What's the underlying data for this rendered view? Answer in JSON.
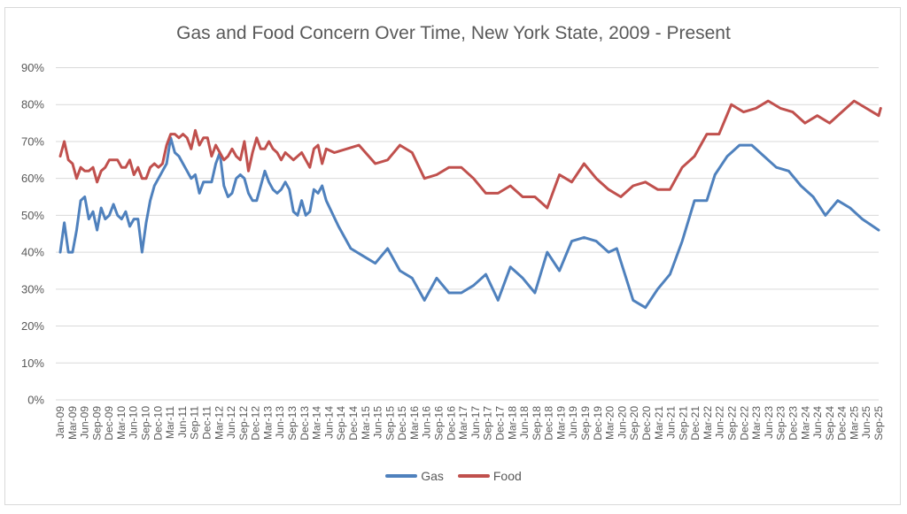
{
  "chart_data": {
    "type": "line",
    "title": "Gas and Food Concern Over Time, New York State, 2009 - Present",
    "xlabel": "",
    "ylabel": "",
    "ylim": [
      0,
      0.9
    ],
    "yticks": [
      "0%",
      "10%",
      "20%",
      "30%",
      "40%",
      "50%",
      "60%",
      "70%",
      "80%",
      "90%"
    ],
    "grid": true,
    "legend_position": "bottom",
    "x_tick_labels": [
      "Jan-09",
      "Mar-09",
      "Jun-09",
      "Sep-09",
      "Dec-09",
      "Mar-10",
      "Jun-10",
      "Sep-10",
      "Dec-10",
      "Mar-11",
      "Jun-11",
      "Sep-11",
      "Dec-11",
      "Mar-12",
      "Jun-12",
      "Sep-12",
      "Dec-12",
      "Mar-13",
      "Jun-13",
      "Sep-13",
      "Dec-13",
      "Mar-14",
      "Jun-14",
      "Sep-14",
      "Dec-14",
      "Mar-15",
      "Jun-15",
      "Sep-15",
      "Dec-15",
      "Mar-16",
      "Jun-16",
      "Sep-16",
      "Dec-16",
      "Mar-17",
      "Jun-17",
      "Sep-17",
      "Dec-17",
      "Mar-18",
      "Jun-18",
      "Sep-18",
      "Dec-18",
      "Mar-19",
      "Jun-19",
      "Sep-19",
      "Dec-19",
      "Mar-20",
      "Jun-20",
      "Sep-20",
      "Dec-20",
      "Mar-21",
      "Jun-21",
      "Sep-21",
      "Dec-21",
      "Mar-22",
      "Jun-22",
      "Sep-22",
      "Dec-22",
      "Mar-23",
      "Jun-23",
      "Sep-23",
      "Dec-23",
      "Mar-24",
      "Jun-24",
      "Sep-24",
      "Dec-24",
      "Mar-25",
      "Jun-25",
      "Sep-25"
    ],
    "x_range_months": [
      0,
      200
    ],
    "x_unit": "months since Jan-09",
    "series": [
      {
        "name": "Gas",
        "color": "#4f81bd",
        "points": [
          [
            0,
            0.4
          ],
          [
            1,
            0.48
          ],
          [
            2,
            0.4
          ],
          [
            3,
            0.4
          ],
          [
            4,
            0.46
          ],
          [
            5,
            0.54
          ],
          [
            6,
            0.55
          ],
          [
            7,
            0.49
          ],
          [
            8,
            0.51
          ],
          [
            9,
            0.46
          ],
          [
            10,
            0.52
          ],
          [
            11,
            0.49
          ],
          [
            12,
            0.5
          ],
          [
            13,
            0.53
          ],
          [
            14,
            0.5
          ],
          [
            15,
            0.49
          ],
          [
            16,
            0.51
          ],
          [
            17,
            0.47
          ],
          [
            18,
            0.49
          ],
          [
            19,
            0.49
          ],
          [
            20,
            0.4
          ],
          [
            21,
            0.48
          ],
          [
            22,
            0.54
          ],
          [
            23,
            0.58
          ],
          [
            24,
            0.6
          ],
          [
            25,
            0.62
          ],
          [
            26,
            0.64
          ],
          [
            27,
            0.71
          ],
          [
            28,
            0.67
          ],
          [
            29,
            0.66
          ],
          [
            30,
            0.64
          ],
          [
            31,
            0.62
          ],
          [
            32,
            0.6
          ],
          [
            33,
            0.61
          ],
          [
            34,
            0.56
          ],
          [
            35,
            0.59
          ],
          [
            36,
            0.59
          ],
          [
            37,
            0.59
          ],
          [
            38,
            0.64
          ],
          [
            39,
            0.67
          ],
          [
            40,
            0.58
          ],
          [
            41,
            0.55
          ],
          [
            42,
            0.56
          ],
          [
            43,
            0.6
          ],
          [
            44,
            0.61
          ],
          [
            45,
            0.6
          ],
          [
            46,
            0.56
          ],
          [
            47,
            0.54
          ],
          [
            48,
            0.54
          ],
          [
            49,
            0.58
          ],
          [
            50,
            0.62
          ],
          [
            51,
            0.59
          ],
          [
            52,
            0.57
          ],
          [
            53,
            0.56
          ],
          [
            54,
            0.57
          ],
          [
            55,
            0.59
          ],
          [
            56,
            0.57
          ],
          [
            57,
            0.51
          ],
          [
            58,
            0.5
          ],
          [
            59,
            0.54
          ],
          [
            60,
            0.5
          ],
          [
            61,
            0.51
          ],
          [
            62,
            0.57
          ],
          [
            63,
            0.56
          ],
          [
            64,
            0.58
          ],
          [
            65,
            0.54
          ],
          [
            68,
            0.47
          ],
          [
            71,
            0.41
          ],
          [
            74,
            0.39
          ],
          [
            77,
            0.37
          ],
          [
            80,
            0.41
          ],
          [
            83,
            0.35
          ],
          [
            86,
            0.33
          ],
          [
            89,
            0.27
          ],
          [
            92,
            0.33
          ],
          [
            95,
            0.29
          ],
          [
            98,
            0.29
          ],
          [
            101,
            0.31
          ],
          [
            104,
            0.34
          ],
          [
            107,
            0.27
          ],
          [
            110,
            0.36
          ],
          [
            113,
            0.33
          ],
          [
            116,
            0.29
          ],
          [
            119,
            0.4
          ],
          [
            122,
            0.35
          ],
          [
            125,
            0.43
          ],
          [
            128,
            0.44
          ],
          [
            131,
            0.43
          ],
          [
            134,
            0.4
          ],
          [
            136,
            0.41
          ],
          [
            140,
            0.27
          ],
          [
            143,
            0.25
          ],
          [
            146,
            0.3
          ],
          [
            149,
            0.34
          ],
          [
            152,
            0.43
          ],
          [
            155,
            0.54
          ],
          [
            158,
            0.54
          ],
          [
            160,
            0.61
          ],
          [
            163,
            0.66
          ],
          [
            166,
            0.69
          ],
          [
            169,
            0.69
          ],
          [
            172,
            0.66
          ],
          [
            175,
            0.63
          ],
          [
            178,
            0.62
          ],
          [
            181,
            0.58
          ],
          [
            184,
            0.55
          ],
          [
            187,
            0.5
          ],
          [
            190,
            0.54
          ],
          [
            193,
            0.52
          ],
          [
            196,
            0.49
          ],
          [
            200,
            0.46
          ]
        ]
      },
      {
        "name": "Food",
        "color": "#c0504d",
        "points": [
          [
            0,
            0.66
          ],
          [
            1,
            0.7
          ],
          [
            2,
            0.65
          ],
          [
            3,
            0.64
          ],
          [
            4,
            0.6
          ],
          [
            5,
            0.63
          ],
          [
            6,
            0.62
          ],
          [
            7,
            0.62
          ],
          [
            8,
            0.63
          ],
          [
            9,
            0.59
          ],
          [
            10,
            0.62
          ],
          [
            11,
            0.63
          ],
          [
            12,
            0.65
          ],
          [
            13,
            0.65
          ],
          [
            14,
            0.65
          ],
          [
            15,
            0.63
          ],
          [
            16,
            0.63
          ],
          [
            17,
            0.65
          ],
          [
            18,
            0.61
          ],
          [
            19,
            0.63
          ],
          [
            20,
            0.6
          ],
          [
            21,
            0.6
          ],
          [
            22,
            0.63
          ],
          [
            23,
            0.64
          ],
          [
            24,
            0.63
          ],
          [
            25,
            0.64
          ],
          [
            26,
            0.69
          ],
          [
            27,
            0.72
          ],
          [
            28,
            0.72
          ],
          [
            29,
            0.71
          ],
          [
            30,
            0.72
          ],
          [
            31,
            0.71
          ],
          [
            32,
            0.68
          ],
          [
            33,
            0.73
          ],
          [
            34,
            0.69
          ],
          [
            35,
            0.71
          ],
          [
            36,
            0.71
          ],
          [
            37,
            0.66
          ],
          [
            38,
            0.69
          ],
          [
            39,
            0.67
          ],
          [
            40,
            0.65
          ],
          [
            41,
            0.66
          ],
          [
            42,
            0.68
          ],
          [
            43,
            0.66
          ],
          [
            44,
            0.65
          ],
          [
            45,
            0.7
          ],
          [
            46,
            0.62
          ],
          [
            47,
            0.67
          ],
          [
            48,
            0.71
          ],
          [
            49,
            0.68
          ],
          [
            50,
            0.68
          ],
          [
            51,
            0.7
          ],
          [
            52,
            0.68
          ],
          [
            53,
            0.67
          ],
          [
            54,
            0.65
          ],
          [
            55,
            0.67
          ],
          [
            56,
            0.66
          ],
          [
            57,
            0.65
          ],
          [
            58,
            0.66
          ],
          [
            59,
            0.67
          ],
          [
            60,
            0.65
          ],
          [
            61,
            0.63
          ],
          [
            62,
            0.68
          ],
          [
            63,
            0.69
          ],
          [
            64,
            0.64
          ],
          [
            65,
            0.68
          ],
          [
            67,
            0.67
          ],
          [
            70,
            0.68
          ],
          [
            73,
            0.69
          ],
          [
            77,
            0.64
          ],
          [
            80,
            0.65
          ],
          [
            83,
            0.69
          ],
          [
            86,
            0.67
          ],
          [
            89,
            0.6
          ],
          [
            92,
            0.61
          ],
          [
            95,
            0.63
          ],
          [
            98,
            0.63
          ],
          [
            101,
            0.6
          ],
          [
            104,
            0.56
          ],
          [
            107,
            0.56
          ],
          [
            110,
            0.58
          ],
          [
            113,
            0.55
          ],
          [
            116,
            0.55
          ],
          [
            119,
            0.52
          ],
          [
            122,
            0.61
          ],
          [
            125,
            0.59
          ],
          [
            128,
            0.64
          ],
          [
            131,
            0.6
          ],
          [
            134,
            0.57
          ],
          [
            137,
            0.55
          ],
          [
            140,
            0.58
          ],
          [
            143,
            0.59
          ],
          [
            146,
            0.57
          ],
          [
            149,
            0.57
          ],
          [
            152,
            0.63
          ],
          [
            155,
            0.66
          ],
          [
            158,
            0.72
          ],
          [
            161,
            0.72
          ],
          [
            164,
            0.8
          ],
          [
            167,
            0.78
          ],
          [
            170,
            0.79
          ],
          [
            173,
            0.81
          ],
          [
            176,
            0.79
          ],
          [
            179,
            0.78
          ],
          [
            182,
            0.75
          ],
          [
            185,
            0.77
          ],
          [
            188,
            0.75
          ],
          [
            191,
            0.78
          ],
          [
            194,
            0.81
          ],
          [
            197,
            0.79
          ],
          [
            200,
            0.77
          ],
          [
            200.5,
            0.79
          ]
        ]
      }
    ]
  }
}
